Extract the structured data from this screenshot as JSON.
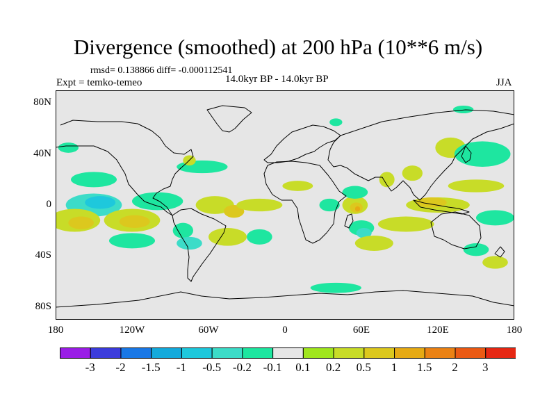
{
  "title": "Divergence (smoothed) at 200 hPa (10**6 m/s)",
  "stats_text": "rmsd= 0.138866 diff= -0.000112541",
  "experiment_text": "Expt = temko-temeo",
  "period_text": "14.0kyr BP - 14.0kyr BP",
  "season": "JJA",
  "lat_labels": [
    "80N",
    "40N",
    "0",
    "40S",
    "80S"
  ],
  "lon_labels": [
    "180",
    "120W",
    "60W",
    "0",
    "60E",
    "120E",
    "180"
  ],
  "colorbar": {
    "colors": [
      "#9a1ee6",
      "#3c3cdc",
      "#1a78e6",
      "#14aadc",
      "#1ec8dc",
      "#3cdcc8",
      "#1ee6a0",
      "#e6e6e6",
      "#a0e61e",
      "#c8dc28",
      "#dcc81e",
      "#e6aa14",
      "#eb8214",
      "#eb5a14",
      "#e62814"
    ],
    "labels": [
      "-3",
      "-2",
      "-1.5",
      "-1",
      "-0.5",
      "-0.2",
      "-0.1",
      "0.1",
      "0.2",
      "0.5",
      "1",
      "1.5",
      "2",
      "3"
    ]
  },
  "map_data": {
    "type": "filled-contour-map",
    "variable": "Divergence (smoothed)",
    "level": "200 hPa",
    "units": "10**6 m/s",
    "lon_range": [
      -180,
      180
    ],
    "lat_range": [
      -90,
      90
    ],
    "projection": "cylindrical-equidistant",
    "regions": [
      {
        "lon": -150,
        "lat": 0,
        "rx": 22,
        "ry": 9,
        "value": -0.5
      },
      {
        "lon": -145,
        "lat": 2,
        "rx": 12,
        "ry": 5,
        "value": -1
      },
      {
        "lon": -165,
        "lat": -12,
        "rx": 20,
        "ry": 9,
        "value": 0.2
      },
      {
        "lon": -160,
        "lat": -14,
        "rx": 10,
        "ry": 5,
        "value": 0.5
      },
      {
        "lon": -120,
        "lat": -12,
        "rx": 22,
        "ry": 9,
        "value": 0.2
      },
      {
        "lon": -118,
        "lat": -13,
        "rx": 12,
        "ry": 5,
        "value": 0.5
      },
      {
        "lon": -100,
        "lat": 3,
        "rx": 20,
        "ry": 7,
        "value": -0.2
      },
      {
        "lon": -150,
        "lat": 20,
        "rx": 18,
        "ry": 6,
        "value": -0.2
      },
      {
        "lon": -170,
        "lat": 45,
        "rx": 8,
        "ry": 4,
        "value": -0.2
      },
      {
        "lon": -65,
        "lat": 30,
        "rx": 20,
        "ry": 5,
        "value": -0.2
      },
      {
        "lon": -75,
        "lat": 35,
        "rx": 5,
        "ry": 4,
        "value": 0.2
      },
      {
        "lon": -55,
        "lat": 0,
        "rx": 15,
        "ry": 7,
        "value": 0.2
      },
      {
        "lon": -40,
        "lat": -5,
        "rx": 8,
        "ry": 5,
        "value": 0.5
      },
      {
        "lon": -45,
        "lat": -25,
        "rx": 15,
        "ry": 7,
        "value": 0.2
      },
      {
        "lon": -80,
        "lat": -20,
        "rx": 8,
        "ry": 6,
        "value": -0.2
      },
      {
        "lon": -75,
        "lat": -30,
        "rx": 10,
        "ry": 5,
        "value": -0.5
      },
      {
        "lon": -120,
        "lat": -28,
        "rx": 18,
        "ry": 6,
        "value": -0.2
      },
      {
        "lon": -20,
        "lat": -25,
        "rx": 10,
        "ry": 6,
        "value": -0.2
      },
      {
        "lon": -20,
        "lat": 0,
        "rx": 18,
        "ry": 5,
        "value": 0.2
      },
      {
        "lon": 10,
        "lat": 15,
        "rx": 12,
        "ry": 4,
        "value": 0.2
      },
      {
        "lon": 35,
        "lat": 0,
        "rx": 8,
        "ry": 5,
        "value": -0.2
      },
      {
        "lon": 55,
        "lat": 0,
        "rx": 10,
        "ry": 7,
        "value": 0.2
      },
      {
        "lon": 56,
        "lat": -2,
        "rx": 5,
        "ry": 4,
        "value": 0.5
      },
      {
        "lon": 57,
        "lat": -3,
        "rx": 2,
        "ry": 2,
        "value": 1
      },
      {
        "lon": 60,
        "lat": -18,
        "rx": 10,
        "ry": 6,
        "value": -0.2
      },
      {
        "lon": 62,
        "lat": -22,
        "rx": 6,
        "ry": 4,
        "value": -0.5
      },
      {
        "lon": 55,
        "lat": 10,
        "rx": 10,
        "ry": 5,
        "value": -0.2
      },
      {
        "lon": 80,
        "lat": 20,
        "rx": 6,
        "ry": 6,
        "value": 0.2
      },
      {
        "lon": 100,
        "lat": 25,
        "rx": 8,
        "ry": 6,
        "value": 0.2
      },
      {
        "lon": 130,
        "lat": 45,
        "rx": 12,
        "ry": 8,
        "value": 0.2
      },
      {
        "lon": 155,
        "lat": 40,
        "rx": 22,
        "ry": 10,
        "value": -0.2
      },
      {
        "lon": 150,
        "lat": 15,
        "rx": 22,
        "ry": 5,
        "value": 0.2
      },
      {
        "lon": 120,
        "lat": 0,
        "rx": 25,
        "ry": 6,
        "value": 0.2
      },
      {
        "lon": 115,
        "lat": 2,
        "rx": 12,
        "ry": 4,
        "value": 0.5
      },
      {
        "lon": 95,
        "lat": -15,
        "rx": 22,
        "ry": 6,
        "value": 0.2
      },
      {
        "lon": 70,
        "lat": -30,
        "rx": 15,
        "ry": 6,
        "value": 0.2
      },
      {
        "lon": 165,
        "lat": -10,
        "rx": 15,
        "ry": 6,
        "value": -0.2
      },
      {
        "lon": 150,
        "lat": -35,
        "rx": 10,
        "ry": 5,
        "value": -0.2
      },
      {
        "lon": 165,
        "lat": -45,
        "rx": 10,
        "ry": 5,
        "value": 0.2
      },
      {
        "lon": 40,
        "lat": -65,
        "rx": 20,
        "ry": 4,
        "value": -0.2
      },
      {
        "lon": 40,
        "lat": 65,
        "rx": 5,
        "ry": 3,
        "value": -0.2
      },
      {
        "lon": 140,
        "lat": 75,
        "rx": 8,
        "ry": 3,
        "value": -0.2
      }
    ]
  }
}
